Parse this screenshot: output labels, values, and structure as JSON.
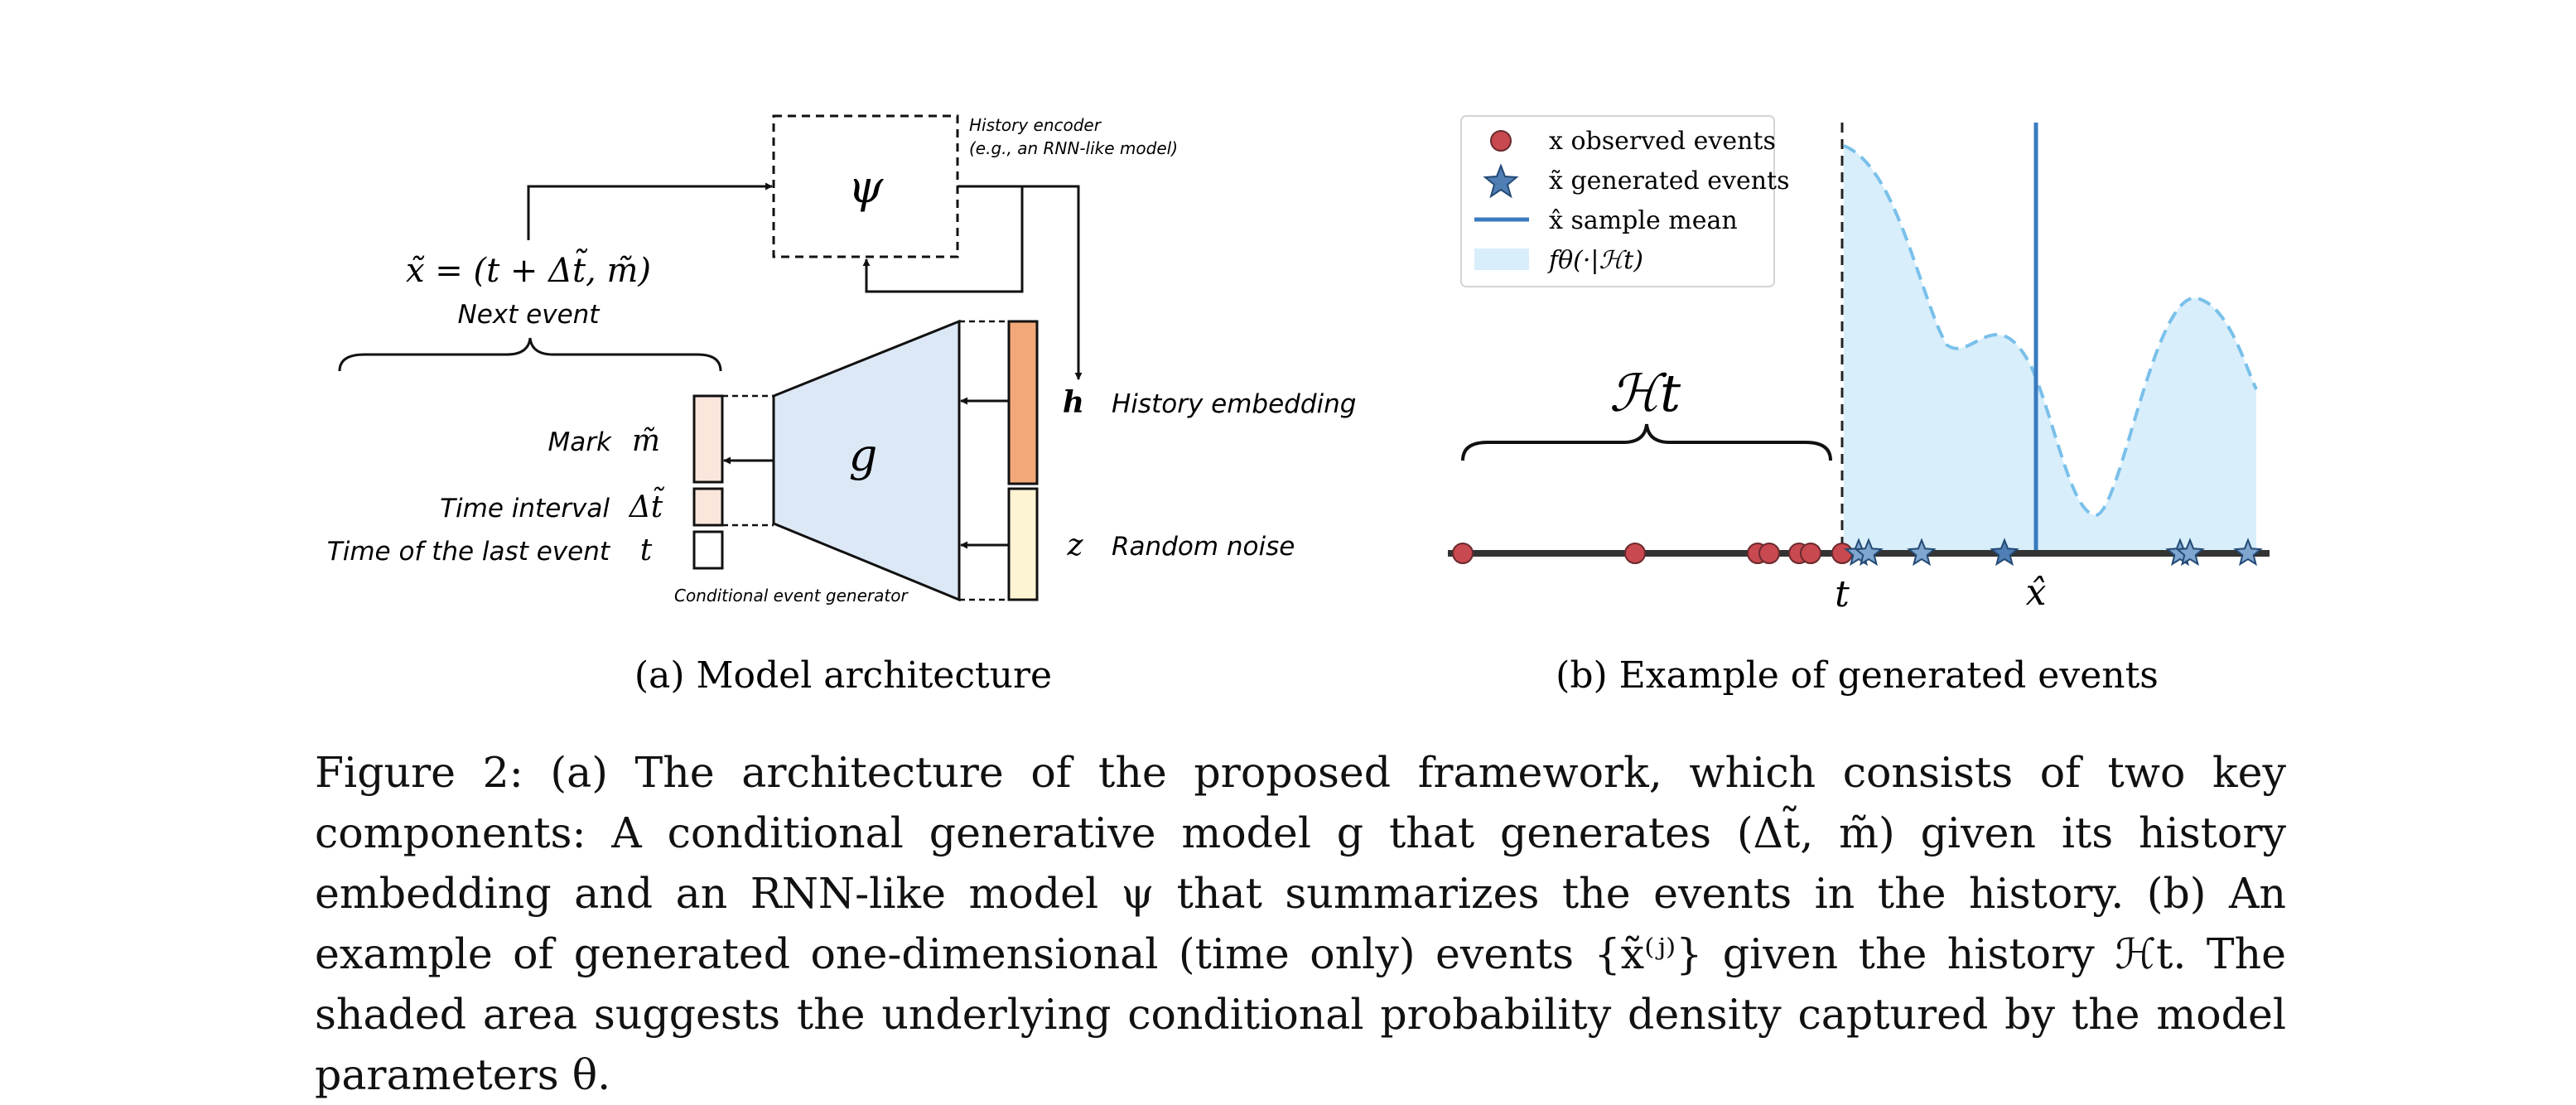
{
  "figure_a": {
    "history_encoder_symbol": "ψ",
    "history_encoder_label_1": "History encoder",
    "history_encoder_label_2": "(e.g., an RNN-like model)",
    "next_event_equation": "x̃ = (t + Δt̃, m̃)",
    "next_event_label": "Next event",
    "generator_symbol": "g",
    "generator_label": "Conditional event generator",
    "mark_label": "Mark",
    "mark_symbol": "m̃",
    "time_interval_label": "Time interval",
    "time_interval_symbol": "Δt̃",
    "last_event_label": "Time of the last event",
    "last_event_symbol": "t",
    "history_embedding_symbol": "h",
    "history_embedding_label": "History embedding",
    "noise_symbol": "z",
    "noise_label": "Random noise",
    "subcaption": "(a) Model architecture",
    "colors": {
      "generator_fill": "#dce8f5",
      "mark_fill": "#fbe6dc",
      "interval_fill": "#fbe6dc",
      "embedding_fill": "#f2a878",
      "noise_fill": "#fdf4d4"
    }
  },
  "figure_b": {
    "legend": {
      "observed": "x observed events",
      "generated": "x̃ generated events",
      "mean": "x̂ sample mean",
      "density": "fθ(·|ℋt)"
    },
    "history_symbol": "ℋt",
    "t_label": "t",
    "mean_label": "x̂",
    "subcaption": "(b) Example of generated events",
    "colors": {
      "observed": "#c8494f",
      "generated": "#4f7fb5",
      "mean_line": "#3a7bbf",
      "density_fill": "#d8eefb",
      "density_line": "#79c0ea"
    }
  },
  "caption": {
    "text": "Figure 2: (a) The architecture of the proposed framework, which consists of two key components: A conditional generative model g that generates (Δt̃, m̃) given its history embedding and an RNN-like model ψ that summarizes the events in the history. (b) An example of generated one-dimensional (time only) events {x̃⁽ʲ⁾} given the history ℋt. The shaded area suggests the underlying conditional probability density captured by the model parameters θ."
  }
}
